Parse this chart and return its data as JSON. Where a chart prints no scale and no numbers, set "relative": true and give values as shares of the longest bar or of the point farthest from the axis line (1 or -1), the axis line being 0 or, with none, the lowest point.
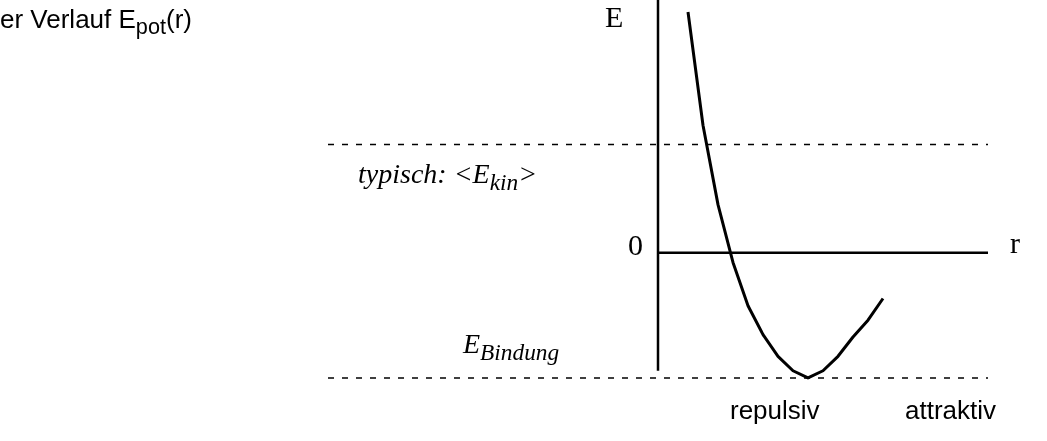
{
  "chart_data": {
    "type": "line",
    "title": "er Verlauf  E$_{pot}$(r)",
    "xlabel": "r",
    "ylabel": "E",
    "relative": true,
    "color": "#000000",
    "categories": [
      null,
      null,
      null,
      null,
      null,
      null,
      null,
      null,
      null,
      null,
      null,
      null,
      null,
      null
    ],
    "values": [
      1,
      0.53,
      0.2,
      -0.04,
      -0.22,
      -0.34,
      -0.43,
      -0.49,
      -0.52,
      -0.49,
      -0.43,
      -0.35,
      -0.28,
      -0.19
    ],
    "ref_lines": [
      {
        "axis": "y",
        "value": 0.45,
        "line_style": "dashed",
        "label": "typisch: <E$_{kin}$>"
      },
      {
        "axis": "y",
        "value": -0.52,
        "line_style": "dashed",
        "label": "E$_{Bindung}$"
      }
    ],
    "annotations": [
      "0",
      "repulsiv",
      "attraktiv"
    ]
  }
}
